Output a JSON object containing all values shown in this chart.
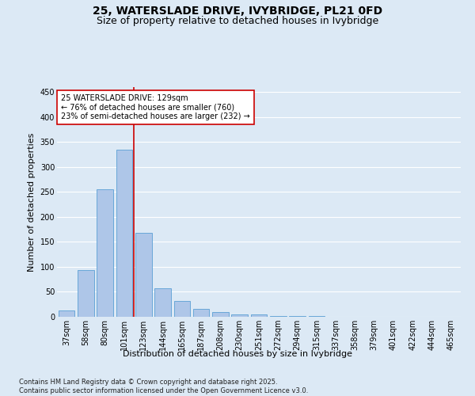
{
  "title_line1": "25, WATERSLADE DRIVE, IVYBRIDGE, PL21 0FD",
  "title_line2": "Size of property relative to detached houses in Ivybridge",
  "xlabel": "Distribution of detached houses by size in Ivybridge",
  "ylabel": "Number of detached properties",
  "categories": [
    "37sqm",
    "58sqm",
    "80sqm",
    "101sqm",
    "123sqm",
    "144sqm",
    "165sqm",
    "187sqm",
    "208sqm",
    "230sqm",
    "251sqm",
    "272sqm",
    "294sqm",
    "315sqm",
    "337sqm",
    "358sqm",
    "379sqm",
    "401sqm",
    "422sqm",
    "444sqm",
    "465sqm"
  ],
  "values": [
    12,
    93,
    255,
    335,
    168,
    57,
    31,
    16,
    10,
    5,
    4,
    1,
    1,
    1,
    0,
    0,
    0,
    0,
    0,
    0,
    0
  ],
  "bar_color": "#aec6e8",
  "bar_edge_color": "#5a9fd4",
  "background_color": "#dce9f5",
  "grid_color": "#ffffff",
  "vline_color": "#cc0000",
  "vline_x": 3.5,
  "annotation_text": "25 WATERSLADE DRIVE: 129sqm\n← 76% of detached houses are smaller (760)\n23% of semi-detached houses are larger (232) →",
  "annotation_box_color": "#ffffff",
  "annotation_box_edge_color": "#cc0000",
  "ylim": [
    0,
    460
  ],
  "yticks": [
    0,
    50,
    100,
    150,
    200,
    250,
    300,
    350,
    400,
    450
  ],
  "footnote": "Contains HM Land Registry data © Crown copyright and database right 2025.\nContains public sector information licensed under the Open Government Licence v3.0.",
  "title_fontsize": 10,
  "subtitle_fontsize": 9,
  "axis_label_fontsize": 8,
  "tick_fontsize": 7,
  "annotation_fontsize": 7,
  "footnote_fontsize": 6
}
